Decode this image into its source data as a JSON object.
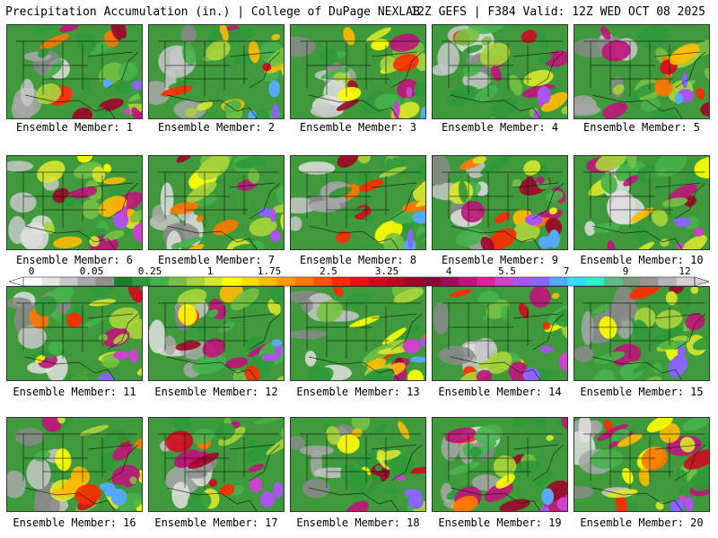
{
  "header": {
    "left_title": "Precipitation Accumulation (in.) | College of DuPage NEXLAB",
    "right_title": "12Z GEFS | F384 Valid: 12Z WED OCT 08 2025"
  },
  "panels": [
    {
      "label": "Ensemble Member: 1"
    },
    {
      "label": "Ensemble Member: 2"
    },
    {
      "label": "Ensemble Member: 3"
    },
    {
      "label": "Ensemble Member: 4"
    },
    {
      "label": "Ensemble Member: 5"
    },
    {
      "label": "Ensemble Member: 6"
    },
    {
      "label": "Ensemble Member: 7"
    },
    {
      "label": "Ensemble Member: 8"
    },
    {
      "label": "Ensemble Member: 9"
    },
    {
      "label": "Ensemble Member: 10"
    },
    {
      "label": "Ensemble Member: 11"
    },
    {
      "label": "Ensemble Member: 12"
    },
    {
      "label": "Ensemble Member: 13"
    },
    {
      "label": "Ensemble Member: 14"
    },
    {
      "label": "Ensemble Member: 15"
    },
    {
      "label": "Ensemble Member: 16"
    },
    {
      "label": "Ensemble Member: 17"
    },
    {
      "label": "Ensemble Member: 18"
    },
    {
      "label": "Ensemble Member: 19"
    },
    {
      "label": "Ensemble Member: 20"
    }
  ],
  "colorbar": {
    "labels": [
      "0",
      "0.05",
      "0.25",
      "1",
      "1.75",
      "2.5",
      "3.25",
      "4",
      "5.5",
      "7",
      "9",
      "12"
    ],
    "colors": [
      "#ffffff",
      "#e6e6e6",
      "#c8c8c8",
      "#a8a8a8",
      "#909090",
      "#1e7d2a",
      "#2f9a3a",
      "#46b34a",
      "#74c244",
      "#a8d53a",
      "#d8e82e",
      "#ffff00",
      "#ffdd00",
      "#ffbb00",
      "#ff9900",
      "#ff7700",
      "#ff5500",
      "#ff2a00",
      "#ee1111",
      "#d00a1e",
      "#b80822",
      "#a00628",
      "#880830",
      "#9a0d5a",
      "#c0147a",
      "#e01ea0",
      "#cc44cc",
      "#aa55ee",
      "#8866ff",
      "#55aaff",
      "#33ddff",
      "#33eecc",
      "#5dbb88",
      "#7a9a7a",
      "#969696",
      "#b4b4b4",
      "#d2d2d2"
    ]
  }
}
